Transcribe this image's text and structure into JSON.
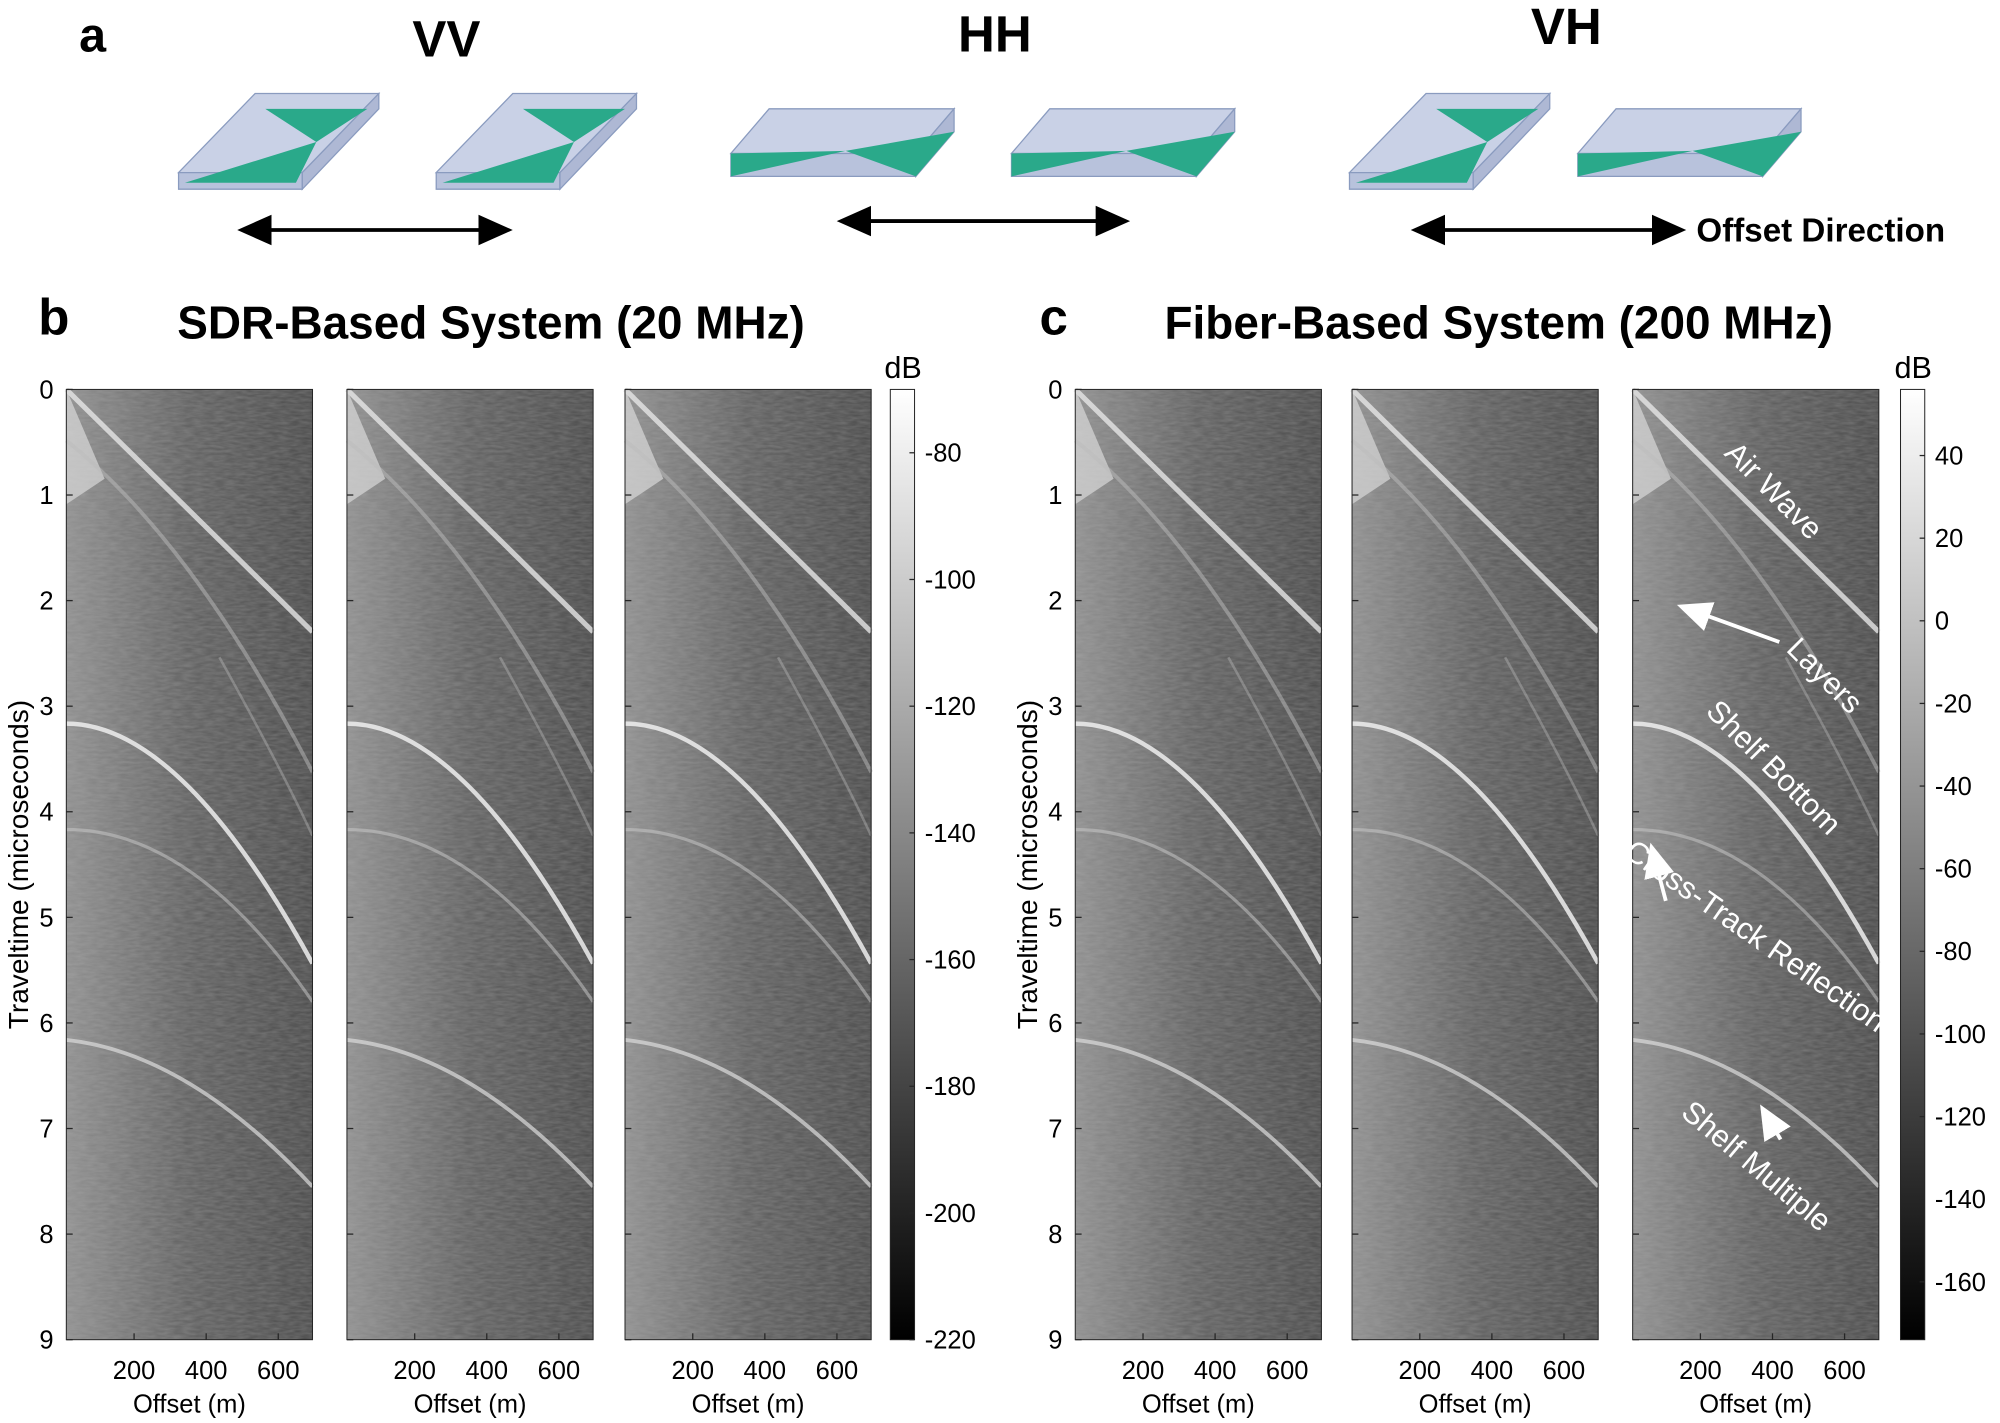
{
  "panel_a": {
    "label": "a",
    "modes": [
      "VV",
      "HH",
      "VH"
    ],
    "offset_direction": "Offset Direction"
  },
  "chart_data": [
    {
      "type": "heatmap",
      "panel_label": "b",
      "title": "SDR-Based System (20 MHz)",
      "ylabel": "Traveltime (microseconds)",
      "ylim": [
        0,
        9
      ],
      "yticks": [
        0,
        1,
        2,
        3,
        4,
        5,
        6,
        7,
        8,
        9
      ],
      "colorbar": {
        "label": "dB",
        "clim": [
          -220,
          -70
        ],
        "ticks": [
          -80,
          -100,
          -120,
          -140,
          -160,
          -180,
          -200,
          -220
        ]
      },
      "panels": [
        {
          "xlabel": "Offset (m)",
          "xlim": [
            12,
            695
          ],
          "xticks": [
            200,
            400,
            600
          ]
        },
        {
          "xlabel": "Offset (m)",
          "xlim": [
            12,
            695
          ],
          "xticks": [
            200,
            400,
            600
          ]
        },
        {
          "xlabel": "Offset (m)",
          "xlim": [
            12,
            695
          ],
          "xticks": [
            200,
            400,
            600
          ]
        }
      ]
    },
    {
      "type": "heatmap",
      "panel_label": "c",
      "title": "Fiber-Based System (200 MHz)",
      "ylabel": "Traveltime (microseconds)",
      "ylim": [
        0,
        9
      ],
      "yticks": [
        0,
        1,
        2,
        3,
        4,
        5,
        6,
        7,
        8,
        9
      ],
      "colorbar": {
        "label": "dB",
        "clim": [
          -174,
          56
        ],
        "ticks": [
          40,
          20,
          0,
          -20,
          -40,
          -60,
          -80,
          -100,
          -120,
          -140,
          -160
        ]
      },
      "panels": [
        {
          "xlabel": "Offset (m)",
          "xlim": [
            12,
            695
          ],
          "xticks": [
            200,
            400,
            600
          ]
        },
        {
          "xlabel": "Offset (m)",
          "xlim": [
            12,
            695
          ],
          "xticks": [
            200,
            400,
            600
          ]
        },
        {
          "xlabel": "Offset (m)",
          "xlim": [
            12,
            695
          ],
          "xticks": [
            200,
            400,
            600
          ]
        }
      ],
      "annotations": [
        "Air Wave",
        "Layers",
        "Shelf Bottom",
        "Cross-Track Reflection",
        "Shelf Multiple"
      ]
    }
  ]
}
